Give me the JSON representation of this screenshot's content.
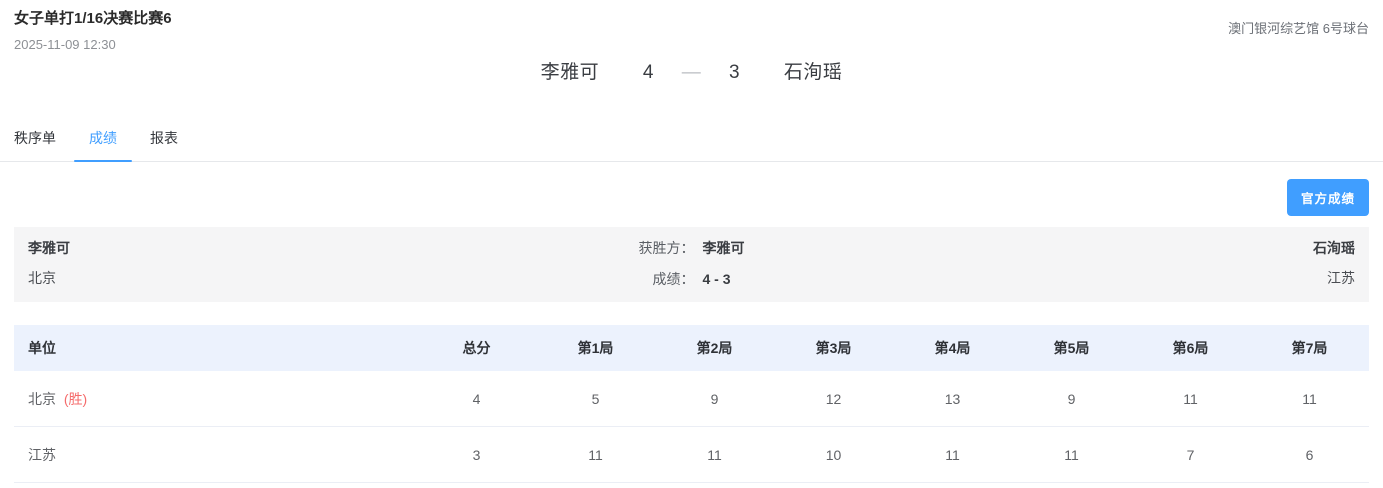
{
  "header": {
    "title": "女子单打1/16决赛比赛6",
    "datetime": "2025-11-09 12:30",
    "venue": "澳门银河综艺馆 6号球台"
  },
  "scoreboard": {
    "player_left": "李雅可",
    "score_left": "4",
    "separator": "—",
    "score_right": "3",
    "player_right": "石洵瑶"
  },
  "tabs": [
    {
      "label": "秩序单",
      "active": false
    },
    {
      "label": "成绩",
      "active": true
    },
    {
      "label": "报表",
      "active": false
    }
  ],
  "actions": {
    "official_result_button": "官方成绩"
  },
  "summary": {
    "left": {
      "name": "李雅可",
      "team": "北京"
    },
    "winner_label": "获胜方：",
    "winner_name": "李雅可",
    "score_label": "成绩：",
    "score_value": "4 - 3",
    "right": {
      "name": "石洵瑶",
      "team": "江苏"
    }
  },
  "results_table": {
    "columns": [
      "单位",
      "总分",
      "第1局",
      "第2局",
      "第3局",
      "第4局",
      "第5局",
      "第6局",
      "第7局"
    ],
    "rows": [
      {
        "unit": "北京",
        "win_badge": "(胜)",
        "values": [
          "4",
          "5",
          "9",
          "12",
          "13",
          "9",
          "11",
          "11"
        ]
      },
      {
        "unit": "江苏",
        "win_badge": "",
        "values": [
          "3",
          "11",
          "11",
          "10",
          "11",
          "11",
          "7",
          "6"
        ]
      }
    ]
  },
  "colors": {
    "accent_blue": "#409EFF",
    "win_red": "#F56C6C",
    "table_header_bg": "#ECF2FD",
    "summary_bg": "#F5F5F6"
  }
}
